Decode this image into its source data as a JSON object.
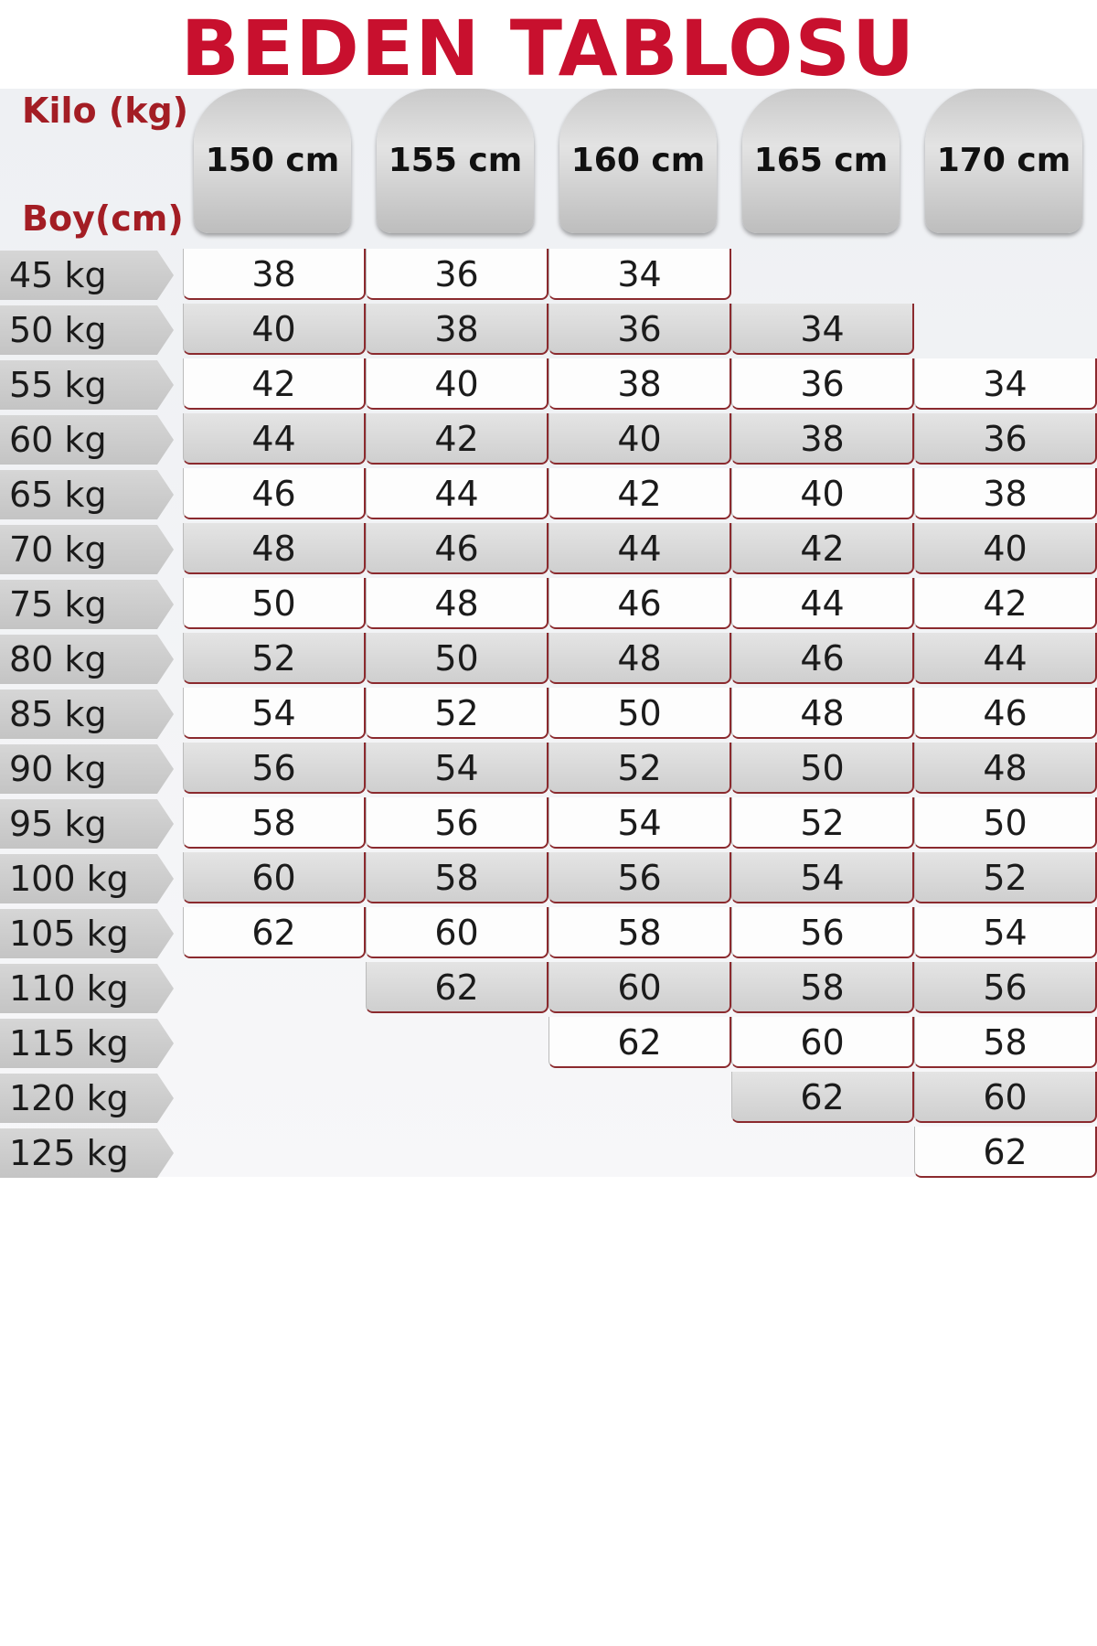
{
  "title": "BEDEN TABLOSU",
  "corner": {
    "kilo": "Kilo (kg)",
    "boy": "Boy(cm)"
  },
  "columns": [
    "150 cm",
    "155 cm",
    "160 cm",
    "165 cm",
    "170 cm"
  ],
  "rows": [
    {
      "label": "45 kg",
      "values": [
        "38",
        "36",
        "34",
        "",
        ""
      ]
    },
    {
      "label": "50 kg",
      "values": [
        "40",
        "38",
        "36",
        "34",
        ""
      ]
    },
    {
      "label": "55 kg",
      "values": [
        "42",
        "40",
        "38",
        "36",
        "34"
      ]
    },
    {
      "label": "60 kg",
      "values": [
        "44",
        "42",
        "40",
        "38",
        "36"
      ]
    },
    {
      "label": "65 kg",
      "values": [
        "46",
        "44",
        "42",
        "40",
        "38"
      ]
    },
    {
      "label": "70 kg",
      "values": [
        "48",
        "46",
        "44",
        "42",
        "40"
      ]
    },
    {
      "label": "75 kg",
      "values": [
        "50",
        "48",
        "46",
        "44",
        "42"
      ]
    },
    {
      "label": "80 kg",
      "values": [
        "52",
        "50",
        "48",
        "46",
        "44"
      ]
    },
    {
      "label": "85 kg",
      "values": [
        "54",
        "52",
        "50",
        "48",
        "46"
      ]
    },
    {
      "label": "90 kg",
      "values": [
        "56",
        "54",
        "52",
        "50",
        "48"
      ]
    },
    {
      "label": "95 kg",
      "values": [
        "58",
        "56",
        "54",
        "52",
        "50"
      ]
    },
    {
      "label": "100 kg",
      "values": [
        "60",
        "58",
        "56",
        "54",
        "52"
      ]
    },
    {
      "label": "105 kg",
      "values": [
        "62",
        "60",
        "58",
        "56",
        "54"
      ]
    },
    {
      "label": "110 kg",
      "values": [
        "",
        "62",
        "60",
        "58",
        "56"
      ]
    },
    {
      "label": "115 kg",
      "values": [
        "",
        "",
        "62",
        "60",
        "58"
      ]
    },
    {
      "label": "120 kg",
      "values": [
        "",
        "",
        "",
        "62",
        "60"
      ]
    },
    {
      "label": "125 kg",
      "values": [
        "",
        "",
        "",
        "",
        "62"
      ]
    }
  ]
}
